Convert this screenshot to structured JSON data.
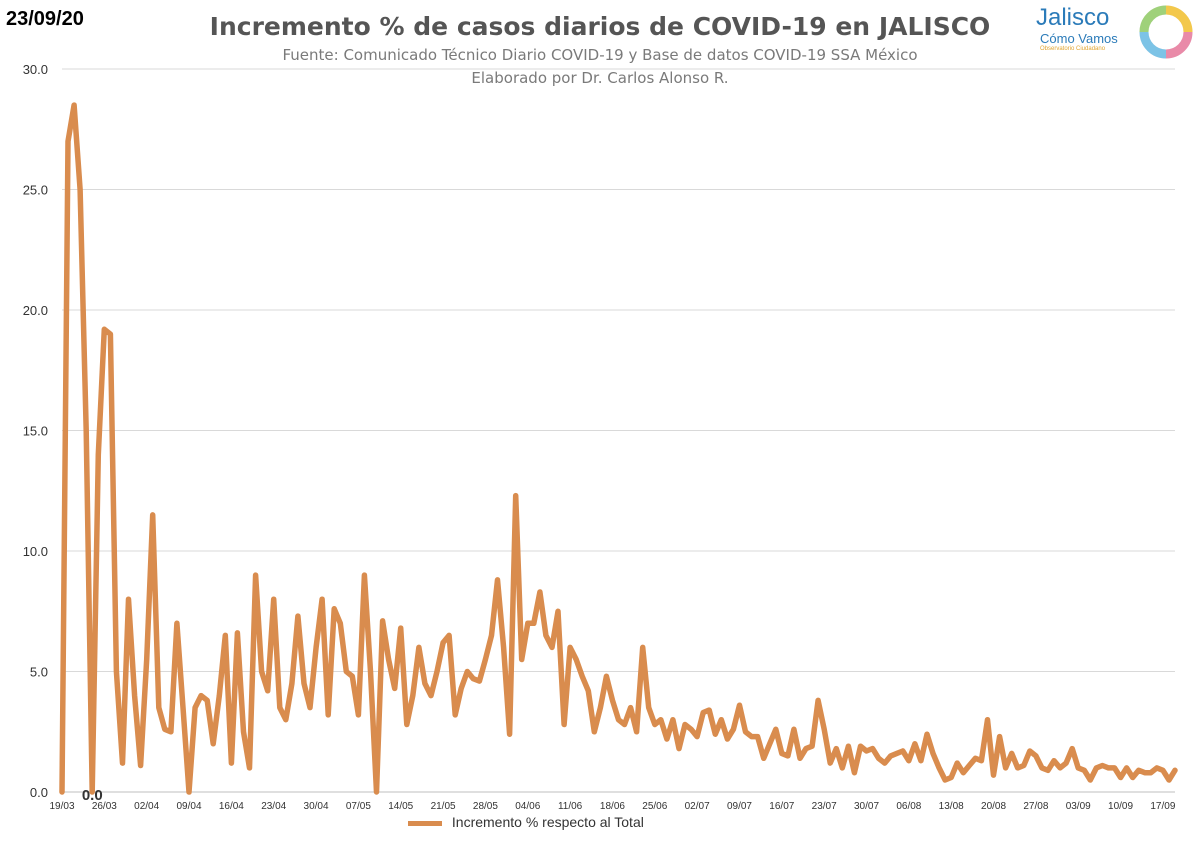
{
  "date_label": "23/09/20",
  "logo": {
    "name": "Jalisco",
    "sub": "Cómo Vamos",
    "tag": "Observatorio Ciudadano"
  },
  "colors": {
    "series": "#d98c4e",
    "grid": "#d9d9d9",
    "axis": "#bfbfbf"
  },
  "chart_data": {
    "type": "line",
    "title": "Incremento % de casos diarios de COVID-19 en JALISCO",
    "subtitle": [
      "Fuente: Comunicado Técnico Diario COVID-19 y Base de datos COVID-19 SSA México",
      "Elaborado por Dr. Carlos Alonso R."
    ],
    "xlabel": "",
    "ylabel": "",
    "ylim": [
      0,
      30
    ],
    "y_ticks": [
      "0.0",
      "5.0",
      "10.0",
      "15.0",
      "20.0",
      "25.0",
      "30.0"
    ],
    "x_ticks": [
      "19/03",
      "26/03",
      "02/04",
      "09/04",
      "16/04",
      "23/04",
      "30/04",
      "07/05",
      "14/05",
      "21/05",
      "28/05",
      "04/06",
      "11/06",
      "18/06",
      "25/06",
      "02/07",
      "09/07",
      "16/07",
      "23/07",
      "30/07",
      "06/08",
      "13/08",
      "20/08",
      "27/08",
      "03/09",
      "10/09",
      "17/09"
    ],
    "grid": true,
    "legend_position": "bottom",
    "series": [
      {
        "name": "Incremento % respecto al Total",
        "values": [
          0.0,
          27.0,
          28.5,
          25.0,
          15.0,
          0.0,
          14.0,
          19.2,
          19.0,
          5.0,
          1.2,
          8.0,
          4.0,
          1.1,
          5.5,
          11.5,
          3.5,
          2.6,
          2.5,
          7.0,
          3.5,
          0.0,
          3.5,
          4.0,
          3.8,
          2.0,
          4.0,
          6.5,
          1.2,
          6.6,
          2.5,
          1.0,
          9.0,
          5.0,
          4.2,
          8.0,
          3.5,
          3.0,
          4.5,
          7.3,
          4.5,
          3.5,
          6.0,
          8.0,
          3.2,
          7.6,
          7.0,
          5.0,
          4.8,
          3.2,
          9.0,
          5.0,
          0.0,
          7.1,
          5.5,
          4.3,
          6.8,
          2.8,
          4.0,
          6.0,
          4.5,
          4.0,
          5.0,
          6.2,
          6.5,
          3.2,
          4.3,
          5.0,
          4.7,
          4.6,
          5.5,
          6.5,
          8.8,
          6.0,
          2.4,
          12.3,
          5.5,
          7.0,
          7.0,
          8.3,
          6.5,
          6.0,
          7.5,
          2.8,
          6.0,
          5.5,
          4.8,
          4.2,
          2.5,
          3.5,
          4.8,
          3.8,
          3.0,
          2.8,
          3.5,
          2.5,
          6.0,
          3.5,
          2.8,
          3.0,
          2.2,
          3.0,
          1.8,
          2.8,
          2.6,
          2.3,
          3.3,
          3.4,
          2.4,
          3.0,
          2.2,
          2.6,
          3.6,
          2.5,
          2.3,
          2.3,
          1.4,
          2.0,
          2.6,
          1.6,
          1.5,
          2.6,
          1.4,
          1.8,
          1.9,
          3.8,
          2.6,
          1.2,
          1.8,
          1.0,
          1.9,
          0.8,
          1.9,
          1.7,
          1.8,
          1.4,
          1.2,
          1.5,
          1.6,
          1.7,
          1.3,
          2.0,
          1.3,
          2.4,
          1.6,
          1.0,
          0.5,
          0.6,
          1.2,
          0.8,
          1.1,
          1.4,
          1.3,
          3.0,
          0.7,
          2.3,
          1.0,
          1.6,
          1.0,
          1.1,
          1.7,
          1.5,
          1.0,
          0.9,
          1.3,
          1.0,
          1.2,
          1.8,
          1.0,
          0.9,
          0.5,
          1.0,
          1.1,
          1.0,
          1.0,
          0.6,
          1.0,
          0.6,
          0.9,
          0.8,
          0.8,
          1.0,
          0.9,
          0.5,
          0.9
        ],
        "end_labels": [
          {
            "index": 5,
            "text": "0.0"
          },
          {
            "index": 185,
            "text": "0.9"
          }
        ]
      }
    ]
  }
}
